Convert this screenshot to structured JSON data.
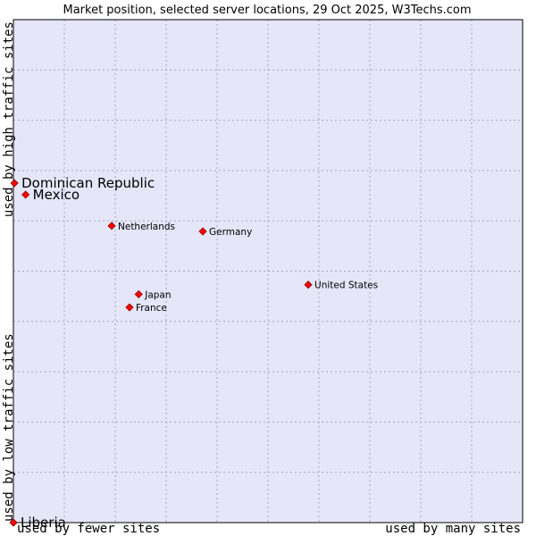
{
  "chart_data": {
    "type": "scatter",
    "title": "Market position, selected server locations, 29 Oct 2025, W3Techs.com",
    "xlabel_low": "used by fewer sites",
    "xlabel_high": "used by many sites",
    "ylabel_low": "used by low traffic sites",
    "ylabel_high": "used by high traffic sites",
    "xlim": [
      0,
      100
    ],
    "ylim": [
      0,
      100
    ],
    "grid": true,
    "points": [
      {
        "name": "Dominican Republic",
        "x": 0.2,
        "y": 67.5,
        "emphasis": true
      },
      {
        "name": "Mexico",
        "x": 2.4,
        "y": 65.2,
        "emphasis": true
      },
      {
        "name": "Netherlands",
        "x": 19.3,
        "y": 59.0,
        "emphasis": false
      },
      {
        "name": "Germany",
        "x": 37.2,
        "y": 57.9,
        "emphasis": false
      },
      {
        "name": "United States",
        "x": 57.9,
        "y": 47.3,
        "emphasis": false
      },
      {
        "name": "Japan",
        "x": 24.6,
        "y": 45.4,
        "emphasis": false
      },
      {
        "name": "France",
        "x": 22.8,
        "y": 42.8,
        "emphasis": false
      },
      {
        "name": "Liberia",
        "x": 0.0,
        "y": 0.0,
        "emphasis": true
      }
    ]
  }
}
